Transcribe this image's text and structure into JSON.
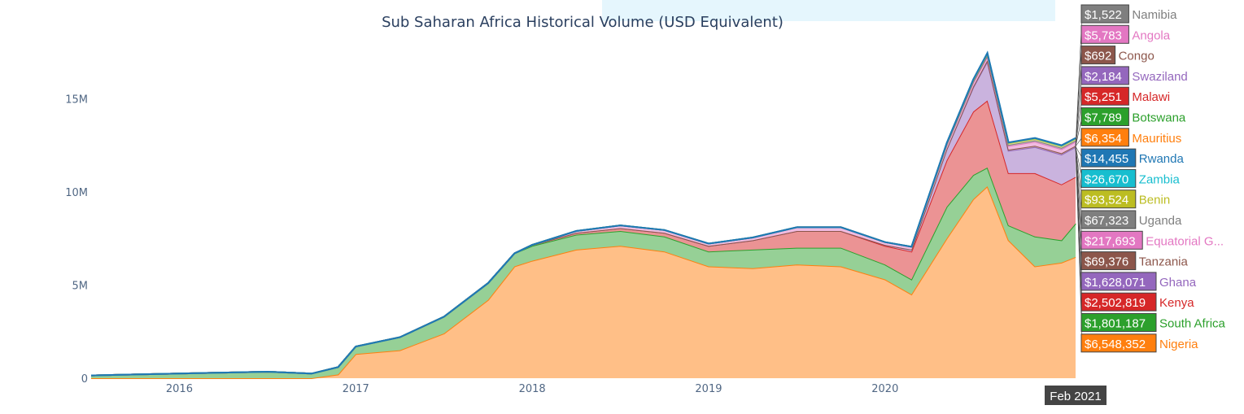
{
  "chart_data": {
    "type": "area",
    "title": "Sub Saharan Africa Historical Volume (USD Equivalent)",
    "xlabel": "",
    "ylabel": "",
    "x_tick_labels": [
      "2016",
      "2017",
      "2018",
      "2019",
      "2020"
    ],
    "y_tick_labels": [
      "0",
      "5M",
      "10M",
      "15M"
    ],
    "ylim": [
      0,
      19200000
    ],
    "xlim": [
      2015.5,
      2021.08
    ],
    "grid": false,
    "legend": "hover labels at right edge",
    "hover_x_label": "Feb 2021",
    "x": [
      2015.5,
      2015.75,
      2016.0,
      2016.25,
      2016.5,
      2016.75,
      2016.9,
      2017.0,
      2017.25,
      2017.5,
      2017.75,
      2017.9,
      2018.0,
      2018.25,
      2018.5,
      2018.75,
      2019.0,
      2019.25,
      2019.5,
      2019.75,
      2020.0,
      2020.15,
      2020.35,
      2020.5,
      2020.58,
      2020.7,
      2020.85,
      2021.0,
      2021.08
    ],
    "series": [
      {
        "name": "Nigeria",
        "color": "#ff7f0e",
        "values": [
          0,
          0,
          0,
          0,
          0,
          0,
          200000,
          1300000,
          1500000,
          2400000,
          4200000,
          6000000,
          6300000,
          6900000,
          7100000,
          6800000,
          6000000,
          5900000,
          6100000,
          6000000,
          5300000,
          4500000,
          7500000,
          9600000,
          10300000,
          7400000,
          6000000,
          6200000,
          6500000
        ]
      },
      {
        "name": "South Africa",
        "color": "#2ca02c",
        "values": [
          150000,
          200000,
          250000,
          300000,
          350000,
          250000,
          400000,
          400000,
          700000,
          900000,
          900000,
          700000,
          800000,
          800000,
          800000,
          800000,
          800000,
          1000000,
          900000,
          1000000,
          800000,
          800000,
          1700000,
          1300000,
          1000000,
          800000,
          1600000,
          1200000,
          1800000
        ]
      },
      {
        "name": "Kenya",
        "color": "#d62728",
        "values": [
          0,
          0,
          0,
          0,
          0,
          0,
          0,
          0,
          0,
          0,
          0,
          0,
          50000,
          100000,
          150000,
          200000,
          300000,
          500000,
          900000,
          900000,
          1000000,
          1500000,
          2500000,
          3400000,
          3600000,
          2800000,
          3400000,
          3000000,
          2500000
        ]
      },
      {
        "name": "Ghana",
        "color": "#9467bd",
        "values": [
          0,
          0,
          0,
          0,
          0,
          0,
          0,
          0,
          0,
          0,
          0,
          0,
          0,
          0,
          0,
          0,
          0,
          0,
          0,
          0,
          50000,
          100000,
          600000,
          1300000,
          2100000,
          1200000,
          1400000,
          1600000,
          1600000
        ]
      },
      {
        "name": "Tanzania",
        "color": "#8c564b",
        "values": [
          0,
          0,
          0,
          0,
          0,
          0,
          0,
          0,
          0,
          0,
          0,
          0,
          0,
          0,
          0,
          0,
          0,
          0,
          0,
          0,
          0,
          0,
          0,
          50000,
          60000,
          60000,
          70000,
          70000,
          69376
        ]
      },
      {
        "name": "Equatorial G...",
        "color": "#e377c2",
        "values": [
          0,
          0,
          0,
          0,
          0,
          0,
          0,
          0,
          0,
          0,
          0,
          0,
          0,
          100000,
          150000,
          150000,
          120000,
          150000,
          200000,
          200000,
          150000,
          150000,
          200000,
          200000,
          200000,
          200000,
          220000,
          220000,
          217693
        ]
      },
      {
        "name": "Uganda",
        "color": "#7f7f7f",
        "values": [
          0,
          0,
          0,
          0,
          0,
          0,
          0,
          0,
          0,
          0,
          0,
          0,
          0,
          0,
          0,
          0,
          0,
          0,
          0,
          0,
          0,
          0,
          50000,
          60000,
          60000,
          60000,
          70000,
          70000,
          67323
        ]
      },
      {
        "name": "Benin",
        "color": "#bcbd22",
        "values": [
          0,
          0,
          0,
          0,
          0,
          0,
          0,
          0,
          0,
          0,
          0,
          0,
          0,
          0,
          0,
          0,
          0,
          0,
          0,
          0,
          0,
          0,
          50000,
          80000,
          90000,
          90000,
          90000,
          95000,
          93524
        ]
      },
      {
        "name": "Zambia",
        "color": "#17becf",
        "values": [
          0,
          0,
          0,
          0,
          0,
          0,
          0,
          0,
          0,
          0,
          0,
          0,
          0,
          0,
          0,
          0,
          0,
          0,
          0,
          0,
          0,
          0,
          20000,
          25000,
          25000,
          25000,
          26000,
          27000,
          26670
        ]
      },
      {
        "name": "Rwanda",
        "color": "#1f77b4",
        "values": [
          0,
          0,
          0,
          0,
          0,
          0,
          0,
          0,
          0,
          0,
          0,
          0,
          0,
          0,
          0,
          0,
          0,
          0,
          0,
          0,
          0,
          0,
          10000,
          14000,
          14000,
          14000,
          14000,
          14000,
          14455
        ]
      }
    ],
    "hover_labels": [
      {
        "value": "$1,522",
        "name": "Namibia",
        "color": "#7f7f7f"
      },
      {
        "value": "$5,783",
        "name": "Angola",
        "color": "#e377c2"
      },
      {
        "value": "$692",
        "name": "Congo",
        "color": "#8c564b"
      },
      {
        "value": "$2,184",
        "name": "Swaziland",
        "color": "#9467bd"
      },
      {
        "value": "$5,251",
        "name": "Malawi",
        "color": "#d62728"
      },
      {
        "value": "$7,789",
        "name": "Botswana",
        "color": "#2ca02c"
      },
      {
        "value": "$6,354",
        "name": "Mauritius",
        "color": "#ff7f0e"
      },
      {
        "value": "$14,455",
        "name": "Rwanda",
        "color": "#1f77b4"
      },
      {
        "value": "$26,670",
        "name": "Zambia",
        "color": "#17becf"
      },
      {
        "value": "$93,524",
        "name": "Benin",
        "color": "#bcbd22"
      },
      {
        "value": "$67,323",
        "name": "Uganda",
        "color": "#7f7f7f"
      },
      {
        "value": "$217,693",
        "name": "Equatorial G...",
        "color": "#e377c2"
      },
      {
        "value": "$69,376",
        "name": "Tanzania",
        "color": "#8c564b"
      },
      {
        "value": "$1,628,071",
        "name": "Ghana",
        "color": "#9467bd"
      },
      {
        "value": "$2,502,819",
        "name": "Kenya",
        "color": "#d62728"
      },
      {
        "value": "$1,801,187",
        "name": "South Africa",
        "color": "#2ca02c"
      },
      {
        "value": "$6,548,352",
        "name": "Nigeria",
        "color": "#ff7f0e"
      }
    ]
  }
}
